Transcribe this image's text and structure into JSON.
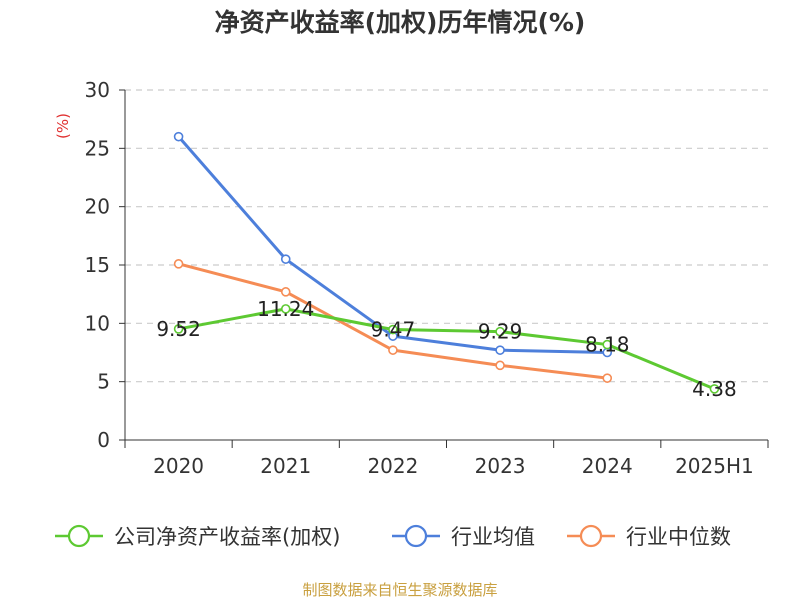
{
  "chart_data": {
    "type": "line",
    "title": "净资产收益率(加权)历年情况(%)",
    "ylabel": "(%)",
    "categories": [
      "2020",
      "2021",
      "2022",
      "2023",
      "2024",
      "2025H1"
    ],
    "ylim": [
      0,
      30
    ],
    "yticks": [
      0,
      5,
      10,
      15,
      20,
      25,
      30
    ],
    "grid": true,
    "legend_position": "bottom",
    "series": [
      {
        "name": "公司净资产收益率(加权)",
        "color": "#5dc932",
        "values": [
          9.52,
          11.24,
          9.47,
          9.29,
          8.18,
          4.38
        ],
        "data_labels": [
          "9.52",
          "11.24",
          "9.47",
          "9.29",
          "8.18",
          "4.38"
        ]
      },
      {
        "name": "行业均值",
        "color": "#4d7fdb",
        "values": [
          26.0,
          15.5,
          8.9,
          7.7,
          7.5,
          null
        ]
      },
      {
        "name": "行业中位数",
        "color": "#f58c55",
        "values": [
          15.1,
          12.7,
          7.7,
          6.4,
          5.3,
          null
        ]
      }
    ]
  },
  "source_text": "制图数据来自恒生聚源数据库",
  "colors": {
    "unit_label": "#e03030",
    "source": "#c9a040",
    "axis": "#333333",
    "grid": "#cccccc"
  }
}
